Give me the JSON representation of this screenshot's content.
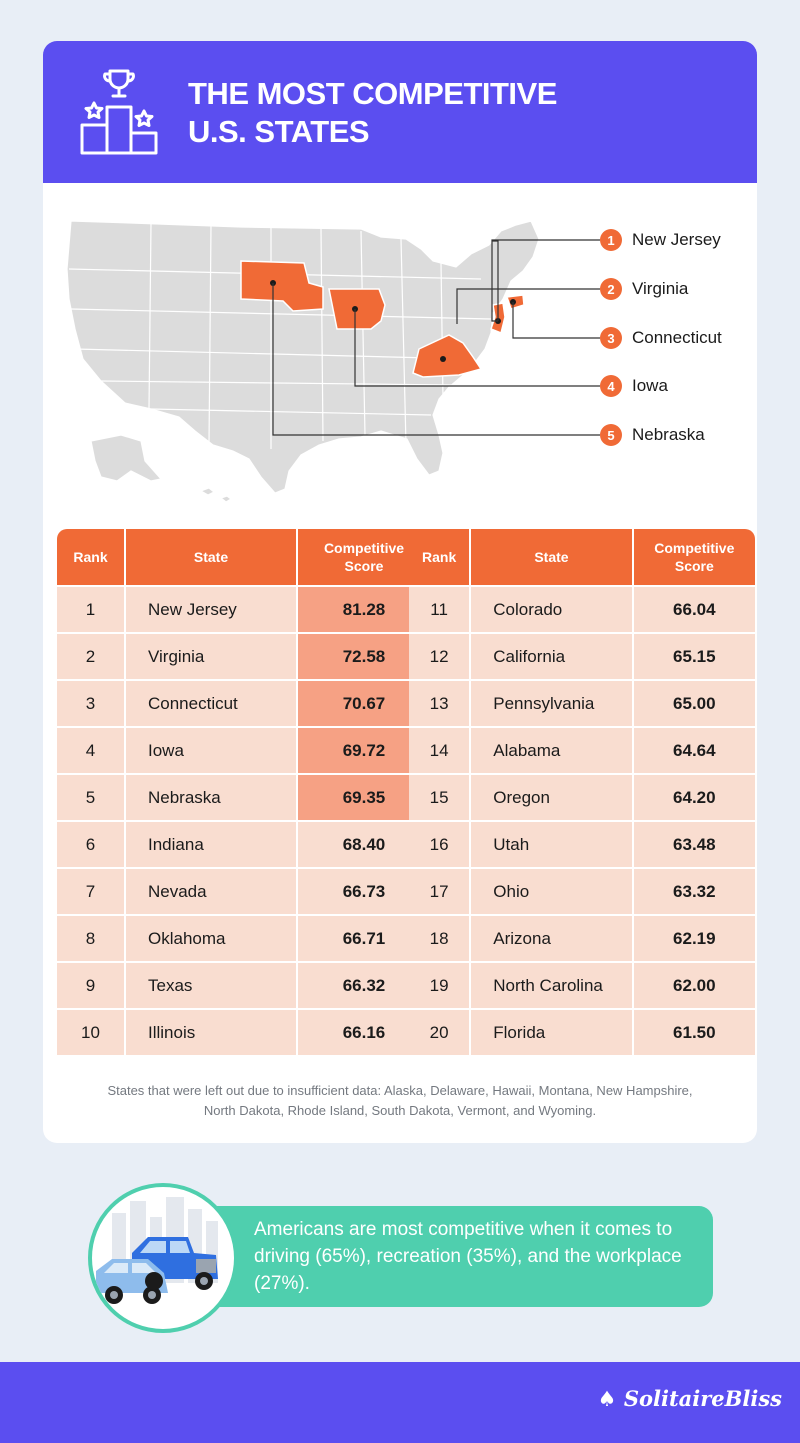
{
  "header": {
    "title_line1": "THE MOST COMPETITIVE",
    "title_line2": "U.S. STATES",
    "icon": "trophy-podium-icon"
  },
  "map": {
    "highlight_color": "#f06a36",
    "state_color": "#dcdcdc",
    "callouts": [
      {
        "rank": "1",
        "name": "New Jersey"
      },
      {
        "rank": "2",
        "name": "Virginia"
      },
      {
        "rank": "3",
        "name": "Connecticut"
      },
      {
        "rank": "4",
        "name": "Iowa"
      },
      {
        "rank": "5",
        "name": "Nebraska"
      }
    ]
  },
  "table": {
    "headers": {
      "rank": "Rank",
      "state": "State",
      "score_line1": "Competitive",
      "score_line2": "Score"
    },
    "left": [
      {
        "rank": "1",
        "state": "New Jersey",
        "score": "81.28"
      },
      {
        "rank": "2",
        "state": "Virginia",
        "score": "72.58"
      },
      {
        "rank": "3",
        "state": "Connecticut",
        "score": "70.67"
      },
      {
        "rank": "4",
        "state": "Iowa",
        "score": "69.72"
      },
      {
        "rank": "5",
        "state": "Nebraska",
        "score": "69.35"
      },
      {
        "rank": "6",
        "state": "Indiana",
        "score": "68.40"
      },
      {
        "rank": "7",
        "state": "Nevada",
        "score": "66.73"
      },
      {
        "rank": "8",
        "state": "Oklahoma",
        "score": "66.71"
      },
      {
        "rank": "9",
        "state": "Texas",
        "score": "66.32"
      },
      {
        "rank": "10",
        "state": "Illinois",
        "score": "66.16"
      }
    ],
    "right": [
      {
        "rank": "11",
        "state": "Colorado",
        "score": "66.04"
      },
      {
        "rank": "12",
        "state": "California",
        "score": "65.15"
      },
      {
        "rank": "13",
        "state": "Pennsylvania",
        "score": "65.00"
      },
      {
        "rank": "14",
        "state": "Alabama",
        "score": "64.64"
      },
      {
        "rank": "15",
        "state": "Oregon",
        "score": "64.20"
      },
      {
        "rank": "16",
        "state": "Utah",
        "score": "63.48"
      },
      {
        "rank": "17",
        "state": "Ohio",
        "score": "63.32"
      },
      {
        "rank": "18",
        "state": "Arizona",
        "score": "62.19"
      },
      {
        "rank": "19",
        "state": "North Carolina",
        "score": "62.00"
      },
      {
        "rank": "20",
        "state": "Florida",
        "score": "61.50"
      }
    ]
  },
  "footnote": {
    "line1": "States that were left out due to insufficient data: Alaska, Delaware, Hawaii, Montana, New Hampshire,",
    "line2": "North Dakota, Rhode Island, South Dakota, Vermont, and Wyoming."
  },
  "fact": {
    "text": "Americans are most competitive when it comes to driving (65%), recreation (35%), and the workplace (27%).",
    "icon": "cars-city-icon"
  },
  "brand": {
    "name": "SolitaireBliss",
    "icon": "card-suits-logo-icon"
  },
  "colors": {
    "header_bg": "#5b4ef0",
    "accent": "#f06a36",
    "row_bg": "#f9ddd0",
    "top_score_bg": "#f6a184",
    "fact_bg": "#4fcfae",
    "page_bg": "#e8eef6"
  }
}
